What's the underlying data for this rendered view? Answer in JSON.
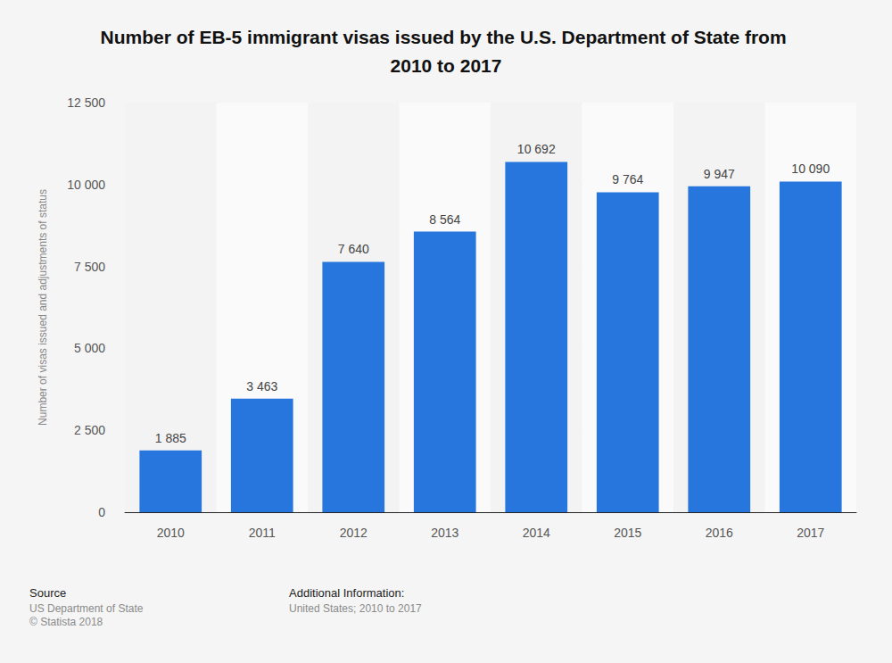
{
  "chart_data": {
    "type": "bar",
    "title": "Number of EB-5 immigrant visas issued by the U.S. Department of State from 2010 to 2017",
    "y_label": "Number of visas issued and adjustments of status",
    "categories": [
      "2010",
      "2011",
      "2012",
      "2013",
      "2014",
      "2015",
      "2016",
      "2017"
    ],
    "values": [
      1885,
      3463,
      7640,
      8564,
      10692,
      9764,
      9947,
      10090
    ],
    "value_labels": [
      "1 885",
      "3 463",
      "7 640",
      "8 564",
      "10 692",
      "9 764",
      "9 947",
      "10 090"
    ],
    "color": "#2776dd",
    "ylim": [
      0,
      12500
    ],
    "yticks": [
      0,
      {
        "value": 2500,
        "label": "2 500"
      },
      {
        "value": 5000,
        "label": "5 000"
      },
      {
        "value": 7500,
        "label": "7 500"
      },
      {
        "value": 10000,
        "label": "10 000"
      },
      {
        "value": 12500,
        "label": "12 500"
      }
    ],
    "grid": true,
    "data_labels": true,
    "source": {
      "heading": "Source",
      "lines": [
        "US Department of State",
        "© Statista 2018"
      ]
    },
    "additional_information": {
      "heading": "Additional Information:",
      "lines": [
        "United States; 2010 to 2017"
      ]
    }
  }
}
